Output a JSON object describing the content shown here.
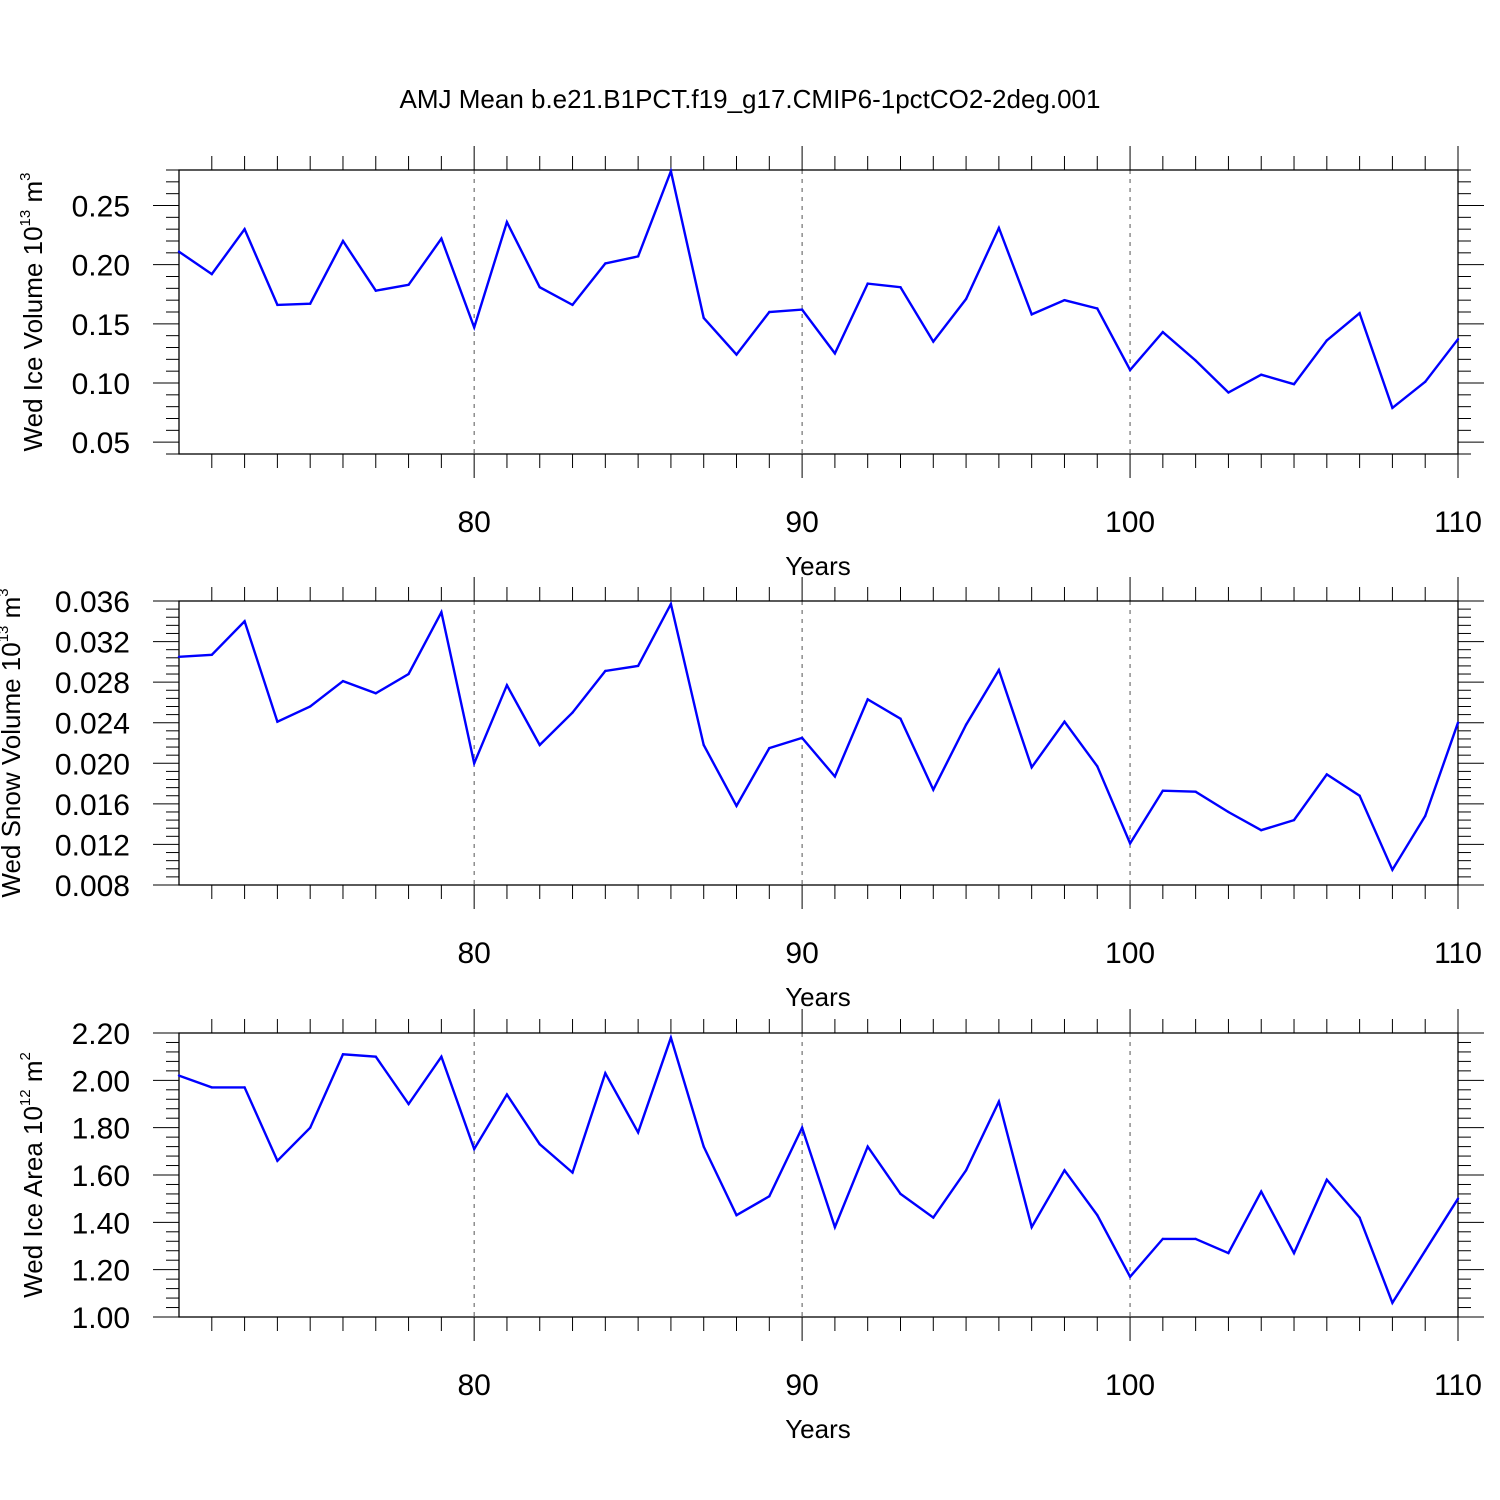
{
  "title": "AMJ Mean b.e21.B1PCT.f19_g17.CMIP6-1pctCO2-2deg.001",
  "colors": {
    "series": "#0000ff",
    "axis": "#000000",
    "grid": "#555555"
  },
  "chart_data": [
    {
      "type": "line",
      "ylabel": {
        "main": "Wed Ice Volume 10",
        "exp": "13",
        "unit": " m",
        "unit_exp": "3"
      },
      "xlabel": "Years",
      "xlim": [
        71,
        110
      ],
      "ylim": [
        0.04,
        0.28
      ],
      "xticks": [
        80,
        90,
        100,
        110
      ],
      "xtick_labels": [
        "80",
        "90",
        "100",
        "110"
      ],
      "yticks": [
        0.05,
        0.1,
        0.15,
        0.2,
        0.25
      ],
      "ytick_labels": [
        "0.05",
        "0.10",
        "0.15",
        "0.20",
        "0.25"
      ],
      "grid": "vertical dashed at major x ticks",
      "x": [
        71,
        72,
        73,
        74,
        75,
        76,
        77,
        78,
        79,
        80,
        81,
        82,
        83,
        84,
        85,
        86,
        87,
        88,
        89,
        90,
        91,
        92,
        93,
        94,
        95,
        96,
        97,
        98,
        99,
        100,
        101,
        102,
        103,
        104,
        105,
        106,
        107,
        108,
        109,
        110
      ],
      "values": [
        0.211,
        0.192,
        0.23,
        0.166,
        0.167,
        0.22,
        0.178,
        0.183,
        0.222,
        0.147,
        0.236,
        0.181,
        0.166,
        0.201,
        0.207,
        0.279,
        0.155,
        0.124,
        0.16,
        0.162,
        0.125,
        0.184,
        0.181,
        0.135,
        0.171,
        0.231,
        0.158,
        0.17,
        0.163,
        0.111,
        0.143,
        0.119,
        0.092,
        0.107,
        0.099,
        0.136,
        0.159,
        0.079,
        0.101,
        0.137
      ]
    },
    {
      "type": "line",
      "ylabel": {
        "main": "Wed Snow Volume 10",
        "exp": "13",
        "unit": " m",
        "unit_exp": "3"
      },
      "xlabel": "Years",
      "xlim": [
        71,
        110
      ],
      "ylim": [
        0.008,
        0.036
      ],
      "xticks": [
        80,
        90,
        100,
        110
      ],
      "xtick_labels": [
        "80",
        "90",
        "100",
        "110"
      ],
      "yticks": [
        0.008,
        0.012,
        0.016,
        0.02,
        0.024,
        0.028,
        0.032,
        0.036
      ],
      "ytick_labels": [
        "0.008",
        "0.012",
        "0.016",
        "0.020",
        "0.024",
        "0.028",
        "0.032",
        "0.036"
      ],
      "grid": "vertical dashed at major x ticks",
      "x": [
        71,
        72,
        73,
        74,
        75,
        76,
        77,
        78,
        79,
        80,
        81,
        82,
        83,
        84,
        85,
        86,
        87,
        88,
        89,
        90,
        91,
        92,
        93,
        94,
        95,
        96,
        97,
        98,
        99,
        100,
        101,
        102,
        103,
        104,
        105,
        106,
        107,
        108,
        109,
        110
      ],
      "values": [
        0.0305,
        0.0307,
        0.034,
        0.0241,
        0.0256,
        0.0281,
        0.0269,
        0.0288,
        0.0349,
        0.02,
        0.0277,
        0.0218,
        0.025,
        0.0291,
        0.0296,
        0.0357,
        0.0218,
        0.0158,
        0.0215,
        0.0225,
        0.0187,
        0.0263,
        0.0244,
        0.0174,
        0.0238,
        0.0292,
        0.0196,
        0.0241,
        0.0197,
        0.0121,
        0.0173,
        0.0172,
        0.0152,
        0.0134,
        0.0144,
        0.0189,
        0.0168,
        0.0095,
        0.0148,
        0.024
      ]
    },
    {
      "type": "line",
      "ylabel": {
        "main": "Wed Ice Area 10",
        "exp": "12",
        "unit": " m",
        "unit_exp": "2"
      },
      "xlabel": "Years",
      "xlim": [
        71,
        110
      ],
      "ylim": [
        1.0,
        2.2
      ],
      "xticks": [
        80,
        90,
        100,
        110
      ],
      "xtick_labels": [
        "80",
        "90",
        "100",
        "110"
      ],
      "yticks": [
        1.0,
        1.2,
        1.4,
        1.6,
        1.8,
        2.0,
        2.2
      ],
      "ytick_labels": [
        "1.00",
        "1.20",
        "1.40",
        "1.60",
        "1.80",
        "2.00",
        "2.20"
      ],
      "grid": "vertical dashed at major x ticks",
      "x": [
        71,
        72,
        73,
        74,
        75,
        76,
        77,
        78,
        79,
        80,
        81,
        82,
        83,
        84,
        85,
        86,
        87,
        88,
        89,
        90,
        91,
        92,
        93,
        94,
        95,
        96,
        97,
        98,
        99,
        100,
        101,
        102,
        103,
        104,
        105,
        106,
        107,
        108,
        109,
        110
      ],
      "values": [
        2.02,
        1.97,
        1.97,
        1.66,
        1.8,
        2.11,
        2.1,
        1.9,
        2.1,
        1.71,
        1.94,
        1.73,
        1.61,
        2.03,
        1.78,
        2.18,
        1.72,
        1.43,
        1.51,
        1.8,
        1.38,
        1.72,
        1.52,
        1.42,
        1.62,
        1.91,
        1.38,
        1.62,
        1.43,
        1.17,
        1.33,
        1.33,
        1.27,
        1.53,
        1.27,
        1.58,
        1.42,
        1.06,
        1.28,
        1.5
      ]
    }
  ]
}
